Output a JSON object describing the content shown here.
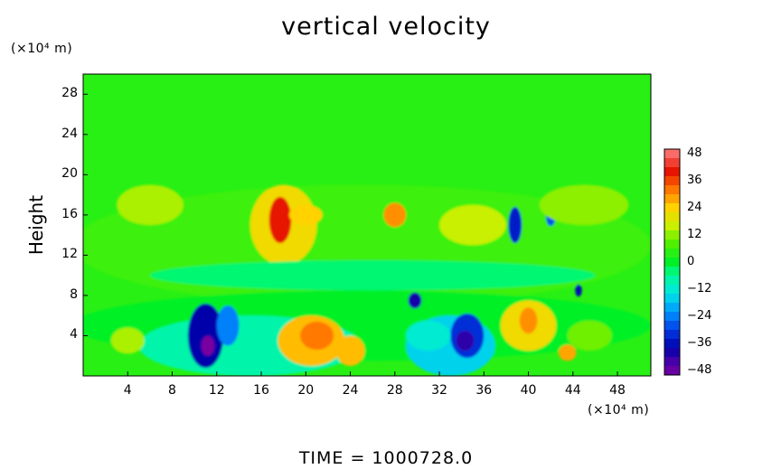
{
  "chart_data": {
    "type": "heatmap",
    "title": "vertical velocity",
    "ylabel": "Height",
    "xunit_label": "(×10⁴ m)",
    "yunit_label": "(×10⁴ m)",
    "footer": "TIME  =  1000728.0",
    "xlim": [
      0,
      51
    ],
    "ylim": [
      0,
      30
    ],
    "x_ticks": [
      4,
      8,
      12,
      16,
      20,
      24,
      28,
      32,
      36,
      40,
      44,
      48
    ],
    "y_ticks": [
      4,
      8,
      12,
      16,
      20,
      24,
      28
    ],
    "colorbar": {
      "range": [
        -50,
        50
      ],
      "ticks": [
        48,
        36,
        24,
        12,
        0,
        -12,
        -24,
        -36,
        -48
      ]
    },
    "background_value": 4,
    "features": [
      {
        "x": 25,
        "y": 13,
        "rx": 26,
        "ry": 6,
        "value": 6
      },
      {
        "x": 25,
        "y": 5,
        "rx": 26,
        "ry": 3.5,
        "value": 0
      },
      {
        "x": 15,
        "y": 3,
        "rx": 10,
        "ry": 3,
        "value": -8
      },
      {
        "x": 33,
        "y": 3,
        "rx": 4,
        "ry": 3,
        "value": -16
      },
      {
        "x": 6,
        "y": 17,
        "rx": 3,
        "ry": 2,
        "value": 14
      },
      {
        "x": 18,
        "y": 15,
        "rx": 3,
        "ry": 4,
        "value": 22
      },
      {
        "x": 17.7,
        "y": 15.5,
        "rx": 1,
        "ry": 2.3,
        "value": 40
      },
      {
        "x": 20,
        "y": 16,
        "rx": 1.5,
        "ry": 1,
        "value": 24
      },
      {
        "x": 28,
        "y": 16,
        "rx": 1,
        "ry": 1.2,
        "value": 30
      },
      {
        "x": 35,
        "y": 15,
        "rx": 3,
        "ry": 2,
        "value": 16
      },
      {
        "x": 38.8,
        "y": 15,
        "rx": 0.6,
        "ry": 1.8,
        "value": -34
      },
      {
        "x": 42,
        "y": 15.7,
        "rx": 0.4,
        "ry": 0.8,
        "value": -28
      },
      {
        "x": 45,
        "y": 17,
        "rx": 4,
        "ry": 2,
        "value": 12
      },
      {
        "x": 11,
        "y": 4,
        "rx": 1.6,
        "ry": 3.2,
        "value": -38
      },
      {
        "x": 11.2,
        "y": 3,
        "rx": 0.6,
        "ry": 1,
        "value": -50
      },
      {
        "x": 13,
        "y": 5,
        "rx": 1,
        "ry": 2,
        "value": -24
      },
      {
        "x": 20.5,
        "y": 3.5,
        "rx": 3,
        "ry": 2.5,
        "value": 26
      },
      {
        "x": 21,
        "y": 4,
        "rx": 1.5,
        "ry": 1.4,
        "value": 32
      },
      {
        "x": 24,
        "y": 2.5,
        "rx": 1.3,
        "ry": 1.5,
        "value": 26
      },
      {
        "x": 4,
        "y": 3.5,
        "rx": 1.5,
        "ry": 1.3,
        "value": 14
      },
      {
        "x": 29.8,
        "y": 7.5,
        "rx": 0.6,
        "ry": 0.8,
        "value": -40
      },
      {
        "x": 34.5,
        "y": 4,
        "rx": 1.5,
        "ry": 2.2,
        "value": -32
      },
      {
        "x": 34.3,
        "y": 3.5,
        "rx": 0.8,
        "ry": 1,
        "value": -42
      },
      {
        "x": 31,
        "y": 4,
        "rx": 2,
        "ry": 1.5,
        "value": -12
      },
      {
        "x": 40,
        "y": 5,
        "rx": 2.5,
        "ry": 2.5,
        "value": 22
      },
      {
        "x": 40,
        "y": 5.5,
        "rx": 0.8,
        "ry": 1.3,
        "value": 30
      },
      {
        "x": 43.5,
        "y": 2.3,
        "rx": 0.8,
        "ry": 0.8,
        "value": 28
      },
      {
        "x": 45.5,
        "y": 4,
        "rx": 2,
        "ry": 1.5,
        "value": 10
      },
      {
        "x": 44.5,
        "y": 8.5,
        "rx": 0.3,
        "ry": 0.6,
        "value": -36
      },
      {
        "x": 26,
        "y": 10,
        "rx": 20,
        "ry": 1.5,
        "value": -4
      }
    ]
  }
}
